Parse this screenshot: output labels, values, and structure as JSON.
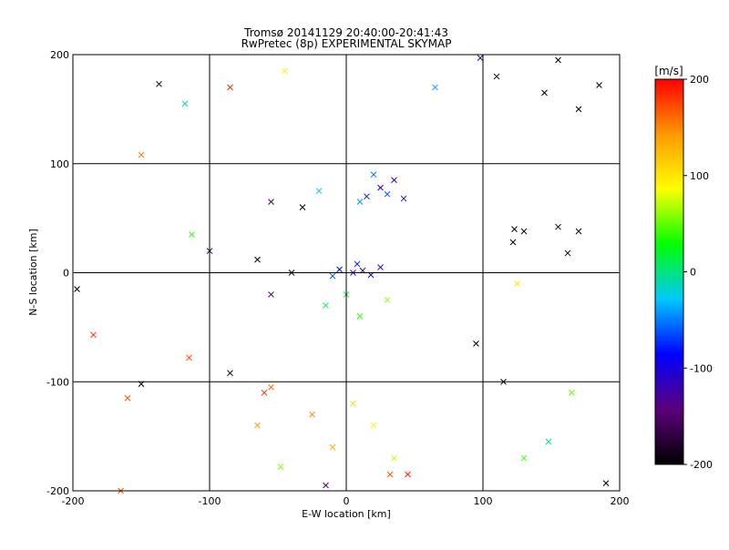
{
  "chart_data": {
    "type": "scatter",
    "title": "Tromsø 20141129 20:40:00-20:41:43",
    "subtitle": "RwPretec (8p) EXPERIMENTAL SKYMAP",
    "xlabel": "E-W location [km]",
    "ylabel": "N-S location [km]",
    "xlim": [
      -200,
      200
    ],
    "ylim": [
      -200,
      200
    ],
    "x_ticks": [
      -200,
      -100,
      0,
      100,
      200
    ],
    "y_ticks": [
      -200,
      -100,
      0,
      100,
      200
    ],
    "x_tick_labels": [
      "-200",
      "-100",
      "0",
      "100",
      "200"
    ],
    "y_tick_labels": [
      "-200",
      "-100",
      "0",
      "100",
      "200"
    ],
    "grid": true,
    "marker_types": [
      "dot",
      "x"
    ],
    "colorbar": {
      "label": "[m/s]",
      "range": [
        -200,
        200
      ],
      "ticks": [
        200,
        100,
        0,
        -100,
        -200
      ],
      "tick_labels": [
        "200",
        "100",
        "0",
        "-100",
        "-200"
      ],
      "colors": [
        "#000000",
        "#5b007a",
        "#0000ff",
        "#00c8ff",
        "#00ff00",
        "#ffff00",
        "#ff9900",
        "#ff0000"
      ]
    },
    "points": [
      {
        "x": 5,
        "y": 0,
        "v": -110,
        "m": "x"
      },
      {
        "x": 12,
        "y": 2,
        "v": -120,
        "m": "x"
      },
      {
        "x": 18,
        "y": -2,
        "v": -100,
        "m": "x"
      },
      {
        "x": -5,
        "y": 3,
        "v": -90,
        "m": "x"
      },
      {
        "x": 25,
        "y": 5,
        "v": -130,
        "m": "x"
      },
      {
        "x": 8,
        "y": 8,
        "v": -80,
        "m": "x"
      },
      {
        "x": -10,
        "y": -3,
        "v": -60,
        "m": "x"
      },
      {
        "x": 15,
        "y": 70,
        "v": -80,
        "m": "x"
      },
      {
        "x": 25,
        "y": 78,
        "v": -100,
        "m": "x"
      },
      {
        "x": 35,
        "y": 85,
        "v": -110,
        "m": "x"
      },
      {
        "x": 10,
        "y": 65,
        "v": -40,
        "m": "x"
      },
      {
        "x": 30,
        "y": 72,
        "v": -60,
        "m": "x"
      },
      {
        "x": 42,
        "y": 68,
        "v": -120,
        "m": "x"
      },
      {
        "x": 20,
        "y": 90,
        "v": -50,
        "m": "x"
      },
      {
        "x": -20,
        "y": 75,
        "v": -30,
        "m": "x"
      },
      {
        "x": 0,
        "y": -20,
        "v": 20,
        "m": "x"
      },
      {
        "x": 10,
        "y": -40,
        "v": 40,
        "m": "x"
      },
      {
        "x": -15,
        "y": -30,
        "v": 10,
        "m": "x"
      },
      {
        "x": 30,
        "y": -25,
        "v": 60,
        "m": "x"
      },
      {
        "x": 5,
        "y": -120,
        "v": 110,
        "m": "x"
      },
      {
        "x": 20,
        "y": -140,
        "v": 90,
        "m": "x"
      },
      {
        "x": -10,
        "y": -160,
        "v": 130,
        "m": "x"
      },
      {
        "x": 35,
        "y": -170,
        "v": 70,
        "m": "x"
      },
      {
        "x": -25,
        "y": -130,
        "v": 150,
        "m": "x"
      },
      {
        "x": -55,
        "y": -105,
        "v": 160,
        "m": "x"
      },
      {
        "x": -60,
        "y": -110,
        "v": 180,
        "m": "x"
      },
      {
        "x": -85,
        "y": 170,
        "v": 190,
        "m": "x"
      },
      {
        "x": -150,
        "y": 108,
        "v": 160,
        "m": "x"
      },
      {
        "x": -118,
        "y": 155,
        "v": -20,
        "m": "x"
      },
      {
        "x": -137,
        "y": 173,
        "v": -200,
        "m": "x"
      },
      {
        "x": 98,
        "y": 197,
        "v": -130,
        "m": "x"
      },
      {
        "x": 110,
        "y": 180,
        "v": -200,
        "m": "x"
      },
      {
        "x": 145,
        "y": 165,
        "v": -200,
        "m": "x"
      },
      {
        "x": 170,
        "y": 150,
        "v": -200,
        "m": "x"
      },
      {
        "x": 185,
        "y": 172,
        "v": -200,
        "m": "x"
      },
      {
        "x": 155,
        "y": 195,
        "v": -200,
        "m": "x"
      },
      {
        "x": 123,
        "y": 40,
        "v": -200,
        "m": "x"
      },
      {
        "x": 130,
        "y": 38,
        "v": -200,
        "m": "x"
      },
      {
        "x": 155,
        "y": 42,
        "v": -200,
        "m": "x"
      },
      {
        "x": 170,
        "y": 38,
        "v": -200,
        "m": "x"
      },
      {
        "x": 122,
        "y": 28,
        "v": -200,
        "m": "x"
      },
      {
        "x": 162,
        "y": 18,
        "v": -200,
        "m": "x"
      },
      {
        "x": 125,
        "y": -10,
        "v": 100,
        "m": "x"
      },
      {
        "x": 95,
        "y": -65,
        "v": -200,
        "m": "x"
      },
      {
        "x": 115,
        "y": -100,
        "v": -200,
        "m": "x"
      },
      {
        "x": 190,
        "y": -193,
        "v": -200,
        "m": "x"
      },
      {
        "x": -197,
        "y": -15,
        "v": -200,
        "m": "x"
      },
      {
        "x": -150,
        "y": -102,
        "v": -200,
        "m": "x"
      },
      {
        "x": -185,
        "y": -57,
        "v": 180,
        "m": "x"
      },
      {
        "x": -115,
        "y": -78,
        "v": 170,
        "m": "x"
      },
      {
        "x": -160,
        "y": -115,
        "v": 170,
        "m": "x"
      },
      {
        "x": -165,
        "y": -200,
        "v": 170,
        "m": "x"
      },
      {
        "x": -85,
        "y": -92,
        "v": -200,
        "m": "x"
      },
      {
        "x": -65,
        "y": -140,
        "v": 140,
        "m": "x"
      },
      {
        "x": -48,
        "y": -178,
        "v": 60,
        "m": "x"
      },
      {
        "x": 45,
        "y": -185,
        "v": 190,
        "m": "x"
      },
      {
        "x": 32,
        "y": -185,
        "v": 170,
        "m": "x"
      },
      {
        "x": -15,
        "y": -195,
        "v": -150,
        "m": "x"
      },
      {
        "x": 148,
        "y": -155,
        "v": 0,
        "m": "x"
      },
      {
        "x": 165,
        "y": -110,
        "v": 50,
        "m": "x"
      },
      {
        "x": 130,
        "y": -170,
        "v": 40,
        "m": "x"
      },
      {
        "x": -113,
        "y": 35,
        "v": 40,
        "m": "x"
      },
      {
        "x": -100,
        "y": 20,
        "v": -180,
        "m": "x"
      },
      {
        "x": -40,
        "y": 0,
        "v": -200,
        "m": "x"
      },
      {
        "x": -65,
        "y": 12,
        "v": -200,
        "m": "x"
      },
      {
        "x": -55,
        "y": -20,
        "v": -160,
        "m": "x"
      },
      {
        "x": -32,
        "y": 60,
        "v": -200,
        "m": "x"
      },
      {
        "x": -55,
        "y": 65,
        "v": -160,
        "m": "x"
      },
      {
        "x": -45,
        "y": 185,
        "v": 90,
        "m": "x"
      },
      {
        "x": 65,
        "y": 170,
        "v": -40,
        "m": "x"
      }
    ]
  }
}
